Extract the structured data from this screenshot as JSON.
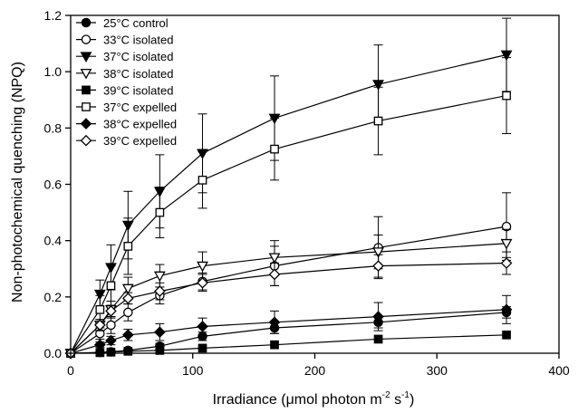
{
  "chart_data": {
    "type": "scatter",
    "title": "",
    "xlabel": {
      "main": "Irradiance (",
      "mu": "μ",
      "unit": "mol photon m",
      "sup1": "-2",
      "mid": " s",
      "sup2": "-1",
      "end": ")"
    },
    "ylabel": "Non-photochemical quenching (NPQ)",
    "xlim": [
      0,
      400
    ],
    "ylim": [
      0,
      1.2
    ],
    "xticks": [
      0,
      100,
      200,
      300,
      400
    ],
    "yticks": [
      0.0,
      0.2,
      0.4,
      0.6,
      0.8,
      1.0,
      1.2
    ],
    "xtick_labels": [
      "0",
      "100",
      "200",
      "300",
      "400"
    ],
    "ytick_labels": [
      "0.0",
      "0.2",
      "0.4",
      "0.6",
      "0.8",
      "1.0",
      "1.2"
    ],
    "grid": false,
    "legend_position": "top-left",
    "x": [
      0,
      24,
      33,
      47,
      73,
      108,
      167,
      252,
      357
    ],
    "series": [
      {
        "name": "25°C control",
        "marker": "circle-filled",
        "y": [
          0,
          0.003,
          0.005,
          0.01,
          0.025,
          0.06,
          0.09,
          0.11,
          0.145
        ],
        "err": [
          0,
          0,
          0,
          0,
          0.01,
          0.015,
          0.02,
          0.02,
          0.02
        ]
      },
      {
        "name": "33°C isolated",
        "marker": "circle-open",
        "y": [
          0,
          0.07,
          0.1,
          0.145,
          0.205,
          0.255,
          0.31,
          0.375,
          0.45
        ],
        "err": [
          0,
          0.02,
          0.03,
          0.03,
          0.03,
          0.03,
          0.07,
          0.11,
          0.12
        ]
      },
      {
        "name": "37°C isolated",
        "marker": "triangle-down-filled",
        "y": [
          0,
          0.21,
          0.305,
          0.455,
          0.575,
          0.71,
          0.835,
          0.955,
          1.06
        ],
        "err": [
          0,
          0.05,
          0.08,
          0.12,
          0.13,
          0.14,
          0.15,
          0.14,
          0.13
        ]
      },
      {
        "name": "38°C isolated",
        "marker": "triangle-down-open",
        "y": [
          0,
          0.1,
          0.155,
          0.23,
          0.275,
          0.31,
          0.34,
          0.36,
          0.39
        ],
        "err": [
          0,
          0.02,
          0.03,
          0.04,
          0.04,
          0.05,
          0.06,
          0.06,
          0.05
        ]
      },
      {
        "name": "39°C isolated",
        "marker": "square-filled",
        "y": [
          0,
          0.002,
          0.004,
          0.007,
          0.01,
          0.018,
          0.03,
          0.05,
          0.065
        ],
        "err": [
          0,
          0,
          0,
          0,
          0,
          0,
          0,
          0,
          0
        ]
      },
      {
        "name": "37°C expelled",
        "marker": "square-open",
        "y": [
          0,
          0.155,
          0.24,
          0.38,
          0.5,
          0.615,
          0.725,
          0.825,
          0.915
        ],
        "err": [
          0,
          0.05,
          0.07,
          0.1,
          0.09,
          0.1,
          0.11,
          0.12,
          0.135
        ]
      },
      {
        "name": "38°C expelled",
        "marker": "diamond-filled",
        "y": [
          0,
          0.03,
          0.045,
          0.065,
          0.075,
          0.095,
          0.11,
          0.13,
          0.155
        ],
        "err": [
          0,
          0.01,
          0.015,
          0.02,
          0.03,
          0.03,
          0.04,
          0.05,
          0.05
        ]
      },
      {
        "name": "39°C expelled",
        "marker": "diamond-open",
        "y": [
          0,
          0.1,
          0.15,
          0.195,
          0.22,
          0.25,
          0.28,
          0.31,
          0.32
        ],
        "err": [
          0,
          0.02,
          0.02,
          0.02,
          0.03,
          0.03,
          0.04,
          0.04,
          0.04
        ]
      }
    ]
  }
}
